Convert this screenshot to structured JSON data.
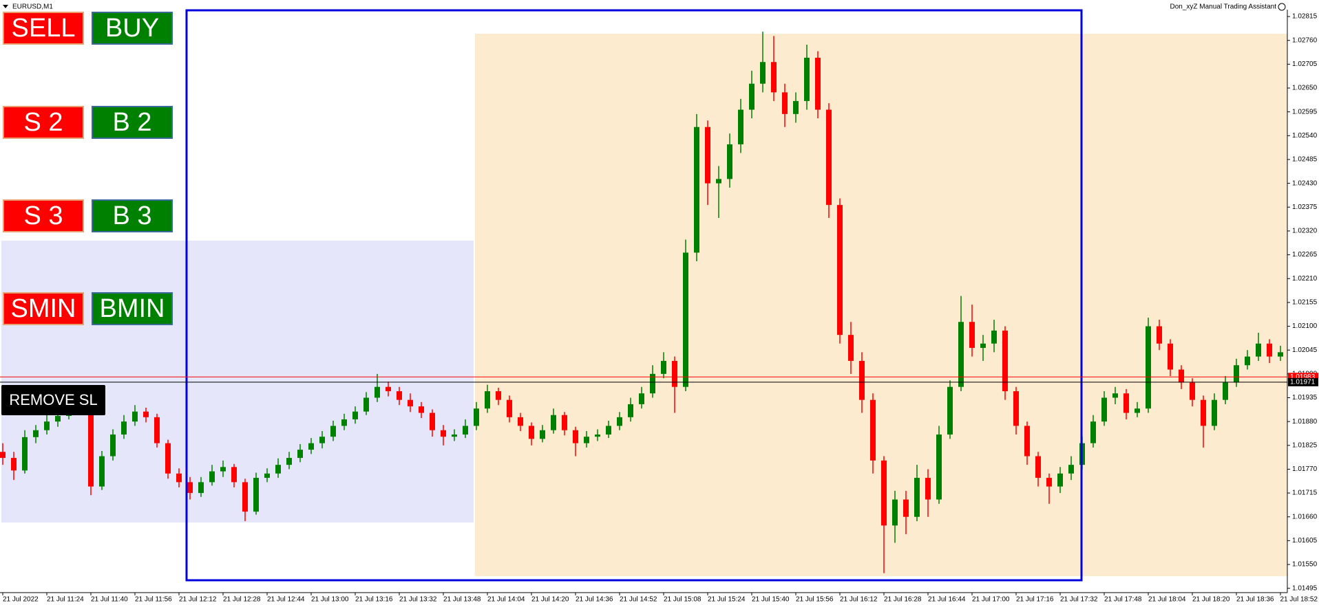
{
  "chart_data": {
    "type": "candlestick",
    "title": "EURUSD,M1",
    "up_color": "#008000",
    "down_color": "#ff0000",
    "ylim": [
      1.01485,
      1.02831
    ],
    "yticks": [
      1.02815,
      {
        "value": 1.0276,
        "label": "1.02760"
      },
      1.02705,
      {
        "value": 1.0265,
        "label": "1.02650"
      },
      1.02595,
      {
        "value": 1.0254,
        "label": "1.02540"
      },
      1.02485,
      {
        "value": 1.0243,
        "label": "1.02430"
      },
      1.02375,
      {
        "value": 1.0232,
        "label": "1.02320"
      },
      1.02265,
      {
        "value": 1.0221,
        "label": "1.02210"
      },
      1.02155,
      {
        "value": 1.021,
        "label": "1.02100"
      },
      1.02045,
      {
        "value": 1.0199,
        "label": "1.01990"
      },
      1.01935,
      {
        "value": 1.0188,
        "label": "1.01880"
      },
      1.01825,
      {
        "value": 1.0177,
        "label": "1.01770"
      },
      1.01715,
      {
        "value": 1.0166,
        "label": "1.01660"
      },
      1.01605,
      {
        "value": 1.0155,
        "label": "1.01550"
      },
      1.01495
    ],
    "price_lines": [
      {
        "value": 1.01983,
        "color": "#ff0000"
      },
      {
        "value": 1.01971,
        "color": "#000000"
      }
    ],
    "categories": [
      "21 Jul 2022",
      null,
      null,
      null,
      "21 Jul 11:24",
      null,
      null,
      null,
      "21 Jul 11:40",
      null,
      null,
      null,
      "21 Jul 11:56",
      null,
      null,
      null,
      "21 Jul 12:12",
      null,
      null,
      null,
      "21 Jul 12:28",
      null,
      null,
      null,
      "21 Jul 12:44",
      null,
      null,
      null,
      "21 Jul 13:00",
      null,
      null,
      null,
      "21 Jul 13:16",
      null,
      null,
      null,
      "21 Jul 13:32",
      null,
      null,
      null,
      "21 Jul 13:48",
      null,
      null,
      null,
      "21 Jul 14:04",
      null,
      null,
      null,
      "21 Jul 14:20",
      null,
      null,
      null,
      "21 Jul 14:36",
      null,
      null,
      null,
      "21 Jul 14:52",
      null,
      null,
      null,
      "21 Jul 15:08",
      null,
      null,
      null,
      "21 Jul 15:24",
      null,
      null,
      null,
      "21 Jul 15:40",
      null,
      null,
      null,
      "21 Jul 15:56",
      null,
      null,
      null,
      "21 Jul 16:12",
      null,
      null,
      null,
      "21 Jul 16:28",
      null,
      null,
      null,
      "21 Jul 16:44",
      null,
      null,
      null,
      "21 Jul 17:00",
      null,
      null,
      null,
      "21 Jul 17:16",
      null,
      null,
      null,
      "21 Jul 17:32",
      null,
      null,
      null,
      "21 Jul 17:48",
      null,
      null,
      null,
      "21 Jul 18:04",
      null,
      null,
      null,
      "21 Jul 18:20",
      null,
      null,
      null,
      "21 Jul 18:36",
      null,
      null,
      null,
      "21 Jul 18:52"
    ],
    "ohlc": [
      [
        1.0181,
        1.0183,
        1.0178,
        1.01796
      ],
      [
        1.01796,
        1.0181,
        1.01745,
        1.01767
      ],
      [
        1.01767,
        1.0186,
        1.0176,
        1.01844
      ],
      [
        1.01844,
        1.01872,
        1.0183,
        1.0186
      ],
      [
        1.0186,
        1.01895,
        1.0185,
        1.0188
      ],
      [
        1.0188,
        1.01905,
        1.01868,
        1.01893
      ],
      [
        1.01893,
        1.0193,
        1.01885,
        1.0191
      ],
      [
        1.0191,
        1.0194,
        1.019,
        1.01922
      ],
      [
        1.01922,
        1.01928,
        1.0171,
        1.0173
      ],
      [
        1.0173,
        1.01812,
        1.01722,
        1.018
      ],
      [
        1.018,
        1.01862,
        1.0179,
        1.0185
      ],
      [
        1.0185,
        1.01895,
        1.0184,
        1.0188
      ],
      [
        1.0188,
        1.01918,
        1.0187,
        1.01903
      ],
      [
        1.01903,
        1.01912,
        1.01878,
        1.0189
      ],
      [
        1.0189,
        1.01898,
        1.0182,
        1.0183
      ],
      [
        1.0183,
        1.01838,
        1.01748,
        1.0176
      ],
      [
        1.0176,
        1.01772,
        1.01728,
        1.0174
      ],
      [
        1.0174,
        1.01752,
        1.017,
        1.01715
      ],
      [
        1.01715,
        1.01752,
        1.01706,
        1.0174
      ],
      [
        1.0174,
        1.0178,
        1.01732,
        1.01765
      ],
      [
        1.01765,
        1.0179,
        1.01752,
        1.01775
      ],
      [
        1.01775,
        1.01782,
        1.01728,
        1.0174
      ],
      [
        1.0174,
        1.01748,
        1.0165,
        1.01672
      ],
      [
        1.01672,
        1.01762,
        1.01665,
        1.0175
      ],
      [
        1.0175,
        1.01772,
        1.0174,
        1.0176
      ],
      [
        1.0176,
        1.01795,
        1.0175,
        1.0178
      ],
      [
        1.0178,
        1.0181,
        1.0177,
        1.01796
      ],
      [
        1.01796,
        1.01828,
        1.01786,
        1.01815
      ],
      [
        1.01815,
        1.01842,
        1.01805,
        1.0183
      ],
      [
        1.0183,
        1.01858,
        1.01818,
        1.01845
      ],
      [
        1.01845,
        1.01882,
        1.01835,
        1.0187
      ],
      [
        1.0187,
        1.01898,
        1.0186,
        1.01885
      ],
      [
        1.01885,
        1.01915,
        1.01875,
        1.01903
      ],
      [
        1.01903,
        1.01948,
        1.01895,
        1.01935
      ],
      [
        1.01935,
        1.0199,
        1.01925,
        1.0196
      ],
      [
        1.0196,
        1.01972,
        1.01938,
        1.0195
      ],
      [
        1.0195,
        1.0196,
        1.01918,
        1.0193
      ],
      [
        1.0193,
        1.01945,
        1.01902,
        1.01915
      ],
      [
        1.01915,
        1.01925,
        1.01888,
        1.019
      ],
      [
        1.019,
        1.01908,
        1.01845,
        1.0186
      ],
      [
        1.0186,
        1.01872,
        1.01825,
        1.01845
      ],
      [
        1.01845,
        1.01862,
        1.01835,
        1.0185
      ],
      [
        1.0185,
        1.01885,
        1.01842,
        1.0187
      ],
      [
        1.0187,
        1.01925,
        1.0186,
        1.0191
      ],
      [
        1.0191,
        1.01965,
        1.019,
        1.0195
      ],
      [
        1.0195,
        1.01958,
        1.01918,
        1.0193
      ],
      [
        1.0193,
        1.0194,
        1.01878,
        1.0189
      ],
      [
        1.0189,
        1.019,
        1.01858,
        1.0187
      ],
      [
        1.0187,
        1.01878,
        1.01825,
        1.0184
      ],
      [
        1.0184,
        1.01872,
        1.01832,
        1.0186
      ],
      [
        1.0186,
        1.0191,
        1.01852,
        1.01895
      ],
      [
        1.01895,
        1.01902,
        1.01848,
        1.0186
      ],
      [
        1.0186,
        1.01868,
        1.018,
        1.0183
      ],
      [
        1.0183,
        1.01858,
        1.0182,
        1.01845
      ],
      [
        1.01845,
        1.01862,
        1.01835,
        1.0185
      ],
      [
        1.0185,
        1.01882,
        1.01842,
        1.0187
      ],
      [
        1.0187,
        1.01902,
        1.0186,
        1.0189
      ],
      [
        1.0189,
        1.01935,
        1.0188,
        1.0192
      ],
      [
        1.0192,
        1.0196,
        1.0191,
        1.01945
      ],
      [
        1.01945,
        1.0201,
        1.01935,
        1.0199
      ],
      [
        1.0199,
        1.0204,
        1.0198,
        1.0202
      ],
      [
        1.0202,
        1.0203,
        1.019,
        1.0196
      ],
      [
        1.0196,
        1.023,
        1.0195,
        1.0227
      ],
      [
        1.0227,
        1.0259,
        1.0225,
        1.0256
      ],
      [
        1.0256,
        1.02575,
        1.0238,
        1.0243
      ],
      [
        1.0243,
        1.0247,
        1.0235,
        1.0244
      ],
      [
        1.0244,
        1.02545,
        1.0242,
        1.0252
      ],
      [
        1.0252,
        1.02625,
        1.025,
        1.026
      ],
      [
        1.026,
        1.0269,
        1.0258,
        1.0266
      ],
      [
        1.0266,
        1.0278,
        1.0264,
        1.0271
      ],
      [
        1.0271,
        1.0277,
        1.0262,
        1.0264
      ],
      [
        1.0264,
        1.0266,
        1.0256,
        1.0259
      ],
      [
        1.0259,
        1.0264,
        1.0257,
        1.0262
      ],
      [
        1.0262,
        1.0275,
        1.026,
        1.0272
      ],
      [
        1.0272,
        1.02735,
        1.0258,
        1.026
      ],
      [
        1.026,
        1.02615,
        1.0235,
        1.0238
      ],
      [
        1.0238,
        1.02395,
        1.0206,
        1.0208
      ],
      [
        1.0208,
        1.0211,
        1.0199,
        1.0202
      ],
      [
        1.0202,
        1.0204,
        1.019,
        1.0193
      ],
      [
        1.0193,
        1.01945,
        1.0176,
        1.0179
      ],
      [
        1.0179,
        1.018,
        1.0153,
        1.0164
      ],
      [
        1.0164,
        1.0172,
        1.016,
        1.017
      ],
      [
        1.017,
        1.0172,
        1.0162,
        1.0166
      ],
      [
        1.0166,
        1.0178,
        1.0165,
        1.0175
      ],
      [
        1.0175,
        1.0177,
        1.0166,
        1.017
      ],
      [
        1.017,
        1.0187,
        1.0169,
        1.0185
      ],
      [
        1.0185,
        1.01975,
        1.0184,
        1.0196
      ],
      [
        1.0196,
        1.0217,
        1.0195,
        1.0211
      ],
      [
        1.0211,
        1.0215,
        1.0203,
        1.0205
      ],
      [
        1.0205,
        1.0208,
        1.0202,
        1.0206
      ],
      [
        1.0206,
        1.02115,
        1.0204,
        1.0209
      ],
      [
        1.0209,
        1.021,
        1.0193,
        1.0195
      ],
      [
        1.0195,
        1.0196,
        1.0185,
        1.0187
      ],
      [
        1.0187,
        1.0188,
        1.0178,
        1.018
      ],
      [
        1.018,
        1.0181,
        1.0173,
        1.0175
      ],
      [
        1.0175,
        1.0176,
        1.0169,
        1.0173
      ],
      [
        1.0173,
        1.01775,
        1.01715,
        1.0176
      ],
      [
        1.0176,
        1.018,
        1.01745,
        1.0178
      ],
      [
        1.0178,
        1.01845,
        1.0177,
        1.0183
      ],
      [
        1.0183,
        1.01895,
        1.0182,
        1.0188
      ],
      [
        1.0188,
        1.0195,
        1.0187,
        1.01935
      ],
      [
        1.01935,
        1.0196,
        1.0192,
        1.01945
      ],
      [
        1.01945,
        1.01955,
        1.01885,
        1.019
      ],
      [
        1.019,
        1.01925,
        1.0189,
        1.0191
      ],
      [
        1.0191,
        1.0212,
        1.019,
        1.021
      ],
      [
        1.021,
        1.02115,
        1.02045,
        1.0206
      ],
      [
        1.0206,
        1.0207,
        1.01985,
        1.02
      ],
      [
        1.02,
        1.0201,
        1.01955,
        1.0197
      ],
      [
        1.0197,
        1.0198,
        1.01915,
        1.0193
      ],
      [
        1.0193,
        1.0194,
        1.0182,
        1.0187
      ],
      [
        1.0187,
        1.01945,
        1.0186,
        1.0193
      ],
      [
        1.0193,
        1.01985,
        1.0192,
        1.0197
      ],
      [
        1.0197,
        1.02025,
        1.0196,
        1.0201
      ],
      [
        1.0201,
        1.02045,
        1.02,
        1.0203
      ],
      [
        1.0203,
        1.02085,
        1.0202,
        1.0206
      ],
      [
        1.0206,
        1.0207,
        1.02015,
        1.0203
      ],
      [
        1.0203,
        1.02055,
        1.0202,
        1.0204
      ]
    ]
  },
  "header": {
    "expert": "Don_xyZ Manual Trading Assistant"
  },
  "buttons": [
    "SELL",
    "BUY",
    "S 2",
    "B 2",
    "S 3",
    "B 3",
    "SMIN",
    "BMIN",
    "REMOVE SL"
  ]
}
